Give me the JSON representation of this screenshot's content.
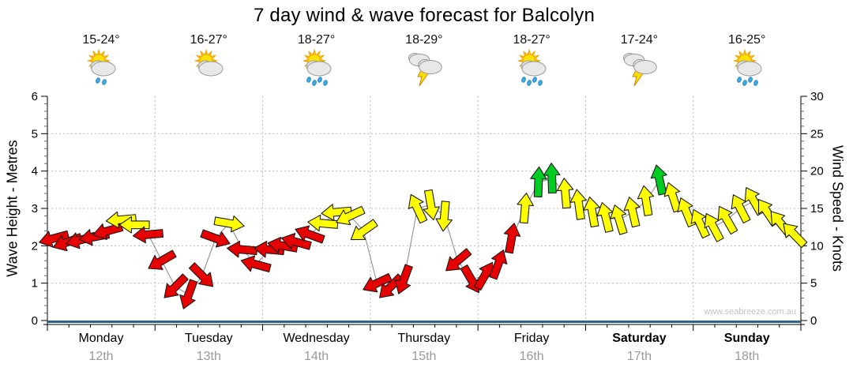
{
  "title": "7 day wind & wave forecast for Balcolyn",
  "watermark": "www.seabreeze.com.au",
  "days": [
    {
      "name": "Monday",
      "date": "12th",
      "temp": "15-24°",
      "icon": "sun-cloud-light-rain",
      "weekend": false
    },
    {
      "name": "Tuesday",
      "date": "13th",
      "temp": "16-27°",
      "icon": "sun-cloud",
      "weekend": false
    },
    {
      "name": "Wednesday",
      "date": "14th",
      "temp": "18-27°",
      "icon": "sun-cloud-rain",
      "weekend": false
    },
    {
      "name": "Thursday",
      "date": "15th",
      "temp": "18-29°",
      "icon": "storm-clouds",
      "weekend": false
    },
    {
      "name": "Friday",
      "date": "16th",
      "temp": "18-27°",
      "icon": "sun-cloud-rain",
      "weekend": false
    },
    {
      "name": "Saturday",
      "date": "17th",
      "temp": "17-24°",
      "icon": "storm-clouds",
      "weekend": true
    },
    {
      "name": "Sunday",
      "date": "18th",
      "temp": "16-25°",
      "icon": "sun-cloud-rain",
      "weekend": true
    }
  ],
  "chart_data": {
    "type": "line",
    "marker": "wind-direction-arrow",
    "title": "7 day wind & wave forecast for Balcolyn",
    "left_axis": {
      "label": "Wave Height - Metres",
      "range": [
        0,
        6
      ],
      "ticks": [
        0,
        1,
        2,
        3,
        4,
        5,
        6
      ]
    },
    "right_axis": {
      "label": "Wind Speed - Knots",
      "range": [
        0,
        30
      ],
      "ticks": [
        0,
        5,
        10,
        15,
        20,
        25,
        30
      ]
    },
    "grid": {
      "h_lines_knots": [
        5,
        10,
        15,
        20,
        25
      ],
      "v_lines": "day-boundaries",
      "style": "dotted"
    },
    "points_per_day": 8,
    "point_format": "[wind_speed_knots, arrow_rotation_deg_clockwise_from_east, color_band]",
    "bands": {
      "r": "light",
      "y": "moderate",
      "g": "fresh"
    },
    "wind_points": [
      [
        11,
        165,
        "r"
      ],
      [
        10.5,
        160,
        "r"
      ],
      [
        10.8,
        165,
        "r"
      ],
      [
        11.2,
        170,
        "r"
      ],
      [
        12,
        165,
        "r"
      ],
      [
        13.5,
        175,
        "y"
      ],
      [
        12.8,
        180,
        "y"
      ],
      [
        11.5,
        175,
        "r"
      ],
      [
        8,
        150,
        "r"
      ],
      [
        4.5,
        135,
        "r"
      ],
      [
        3.5,
        110,
        "r"
      ],
      [
        6,
        45,
        "r"
      ],
      [
        11,
        20,
        "r"
      ],
      [
        13,
        10,
        "y"
      ],
      [
        9.5,
        185,
        "r"
      ],
      [
        7.5,
        195,
        "r"
      ],
      [
        9.5,
        185,
        "r"
      ],
      [
        10,
        190,
        "r"
      ],
      [
        10.5,
        195,
        "r"
      ],
      [
        11.5,
        200,
        "r"
      ],
      [
        13,
        185,
        "y"
      ],
      [
        14.5,
        175,
        "y"
      ],
      [
        14,
        155,
        "y"
      ],
      [
        12,
        145,
        "y"
      ],
      [
        5,
        155,
        "r"
      ],
      [
        4.5,
        135,
        "r"
      ],
      [
        5.5,
        110,
        "r"
      ],
      [
        15,
        245,
        "y"
      ],
      [
        15.5,
        80,
        "y"
      ],
      [
        14,
        95,
        "y"
      ],
      [
        8,
        140,
        "r"
      ],
      [
        5.5,
        60,
        "r"
      ],
      [
        6,
        300,
        "r"
      ],
      [
        7.5,
        290,
        "r"
      ],
      [
        11,
        280,
        "r"
      ],
      [
        15,
        275,
        "y"
      ],
      [
        18.5,
        272,
        "g"
      ],
      [
        19,
        268,
        "g"
      ],
      [
        17,
        265,
        "y"
      ],
      [
        15.5,
        262,
        "y"
      ],
      [
        14.5,
        260,
        "y"
      ],
      [
        13.8,
        256,
        "y"
      ],
      [
        13.5,
        253,
        "y"
      ],
      [
        14.5,
        257,
        "y"
      ],
      [
        16,
        261,
        "y"
      ],
      [
        18.8,
        258,
        "g"
      ],
      [
        16.5,
        252,
        "y"
      ],
      [
        14.5,
        248,
        "y"
      ],
      [
        13,
        245,
        "y"
      ],
      [
        12.5,
        242,
        "y"
      ],
      [
        13.5,
        240,
        "y"
      ],
      [
        15,
        243,
        "y"
      ],
      [
        16,
        240,
        "y"
      ],
      [
        14.5,
        236,
        "y"
      ],
      [
        13,
        231,
        "y"
      ],
      [
        11.5,
        226,
        "y"
      ]
    ],
    "colors": {
      "arrow_red": "#E60000",
      "arrow_yellow": "#FFFF00",
      "arrow_green": "#00CC22",
      "arrow_outline": "#1a1a1a",
      "connector_gray": "#999999",
      "water_line_blue": "#2E6585",
      "grid_gray": "#BBBBBB",
      "axis_black": "#000000",
      "date_gray": "#999999",
      "watermark_gray": "#C4C4C4"
    }
  }
}
